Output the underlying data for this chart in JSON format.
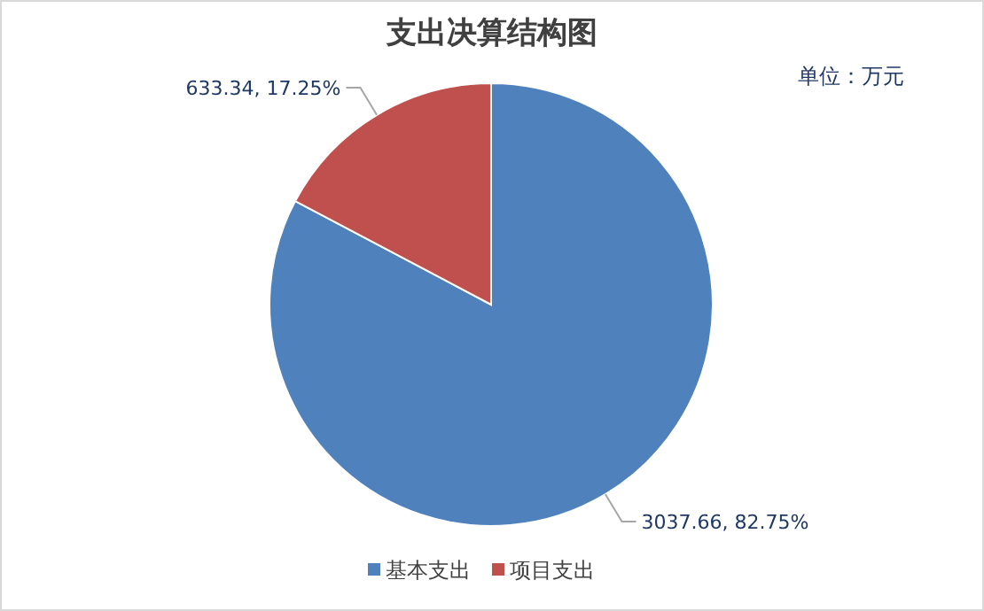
{
  "chart_data": {
    "type": "pie",
    "title": "支出决算结构图",
    "annotations": [
      "单位：万元"
    ],
    "categories": [
      "基本支出",
      "项目支出"
    ],
    "values": [
      3037.66,
      633.34
    ],
    "colors": [
      "#4f81bd",
      "#c0504d"
    ],
    "value_labels": [
      "3037.66, 82.75%",
      "633.34, 17.25%"
    ],
    "legend": "bottom"
  }
}
